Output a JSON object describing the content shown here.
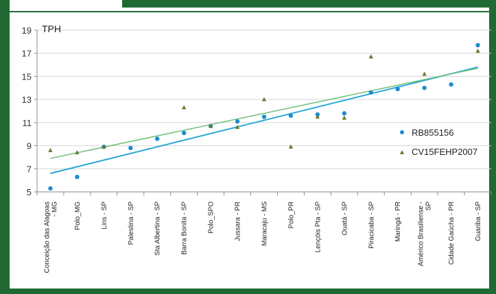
{
  "chart_data": {
    "type": "scatter",
    "ylabel": "TPH",
    "ylim": [
      5,
      19
    ],
    "yticks": [
      5,
      7,
      9,
      11,
      13,
      15,
      17,
      19
    ],
    "categories": [
      "Conceição das Alagoas - MG",
      "Polo_MG",
      "Lins - SP",
      "Palestina - SP",
      "Sta Albertina - SP",
      "Barra Bonita - SP",
      "Polo_SPO",
      "Jussara - PR",
      "Maracaju - MS",
      "Polo_PR",
      "Lençóis Pta - SP",
      "Ouatá - SP",
      "Piracicaba - SP",
      "Maringá - PR",
      "Américo Brasiliense - SP",
      "Cidade Gaúcha - PR",
      "Guariba - SP"
    ],
    "series": [
      {
        "name": "RB855156",
        "marker": "circle",
        "color": "#1f8ccf",
        "values": [
          5.3,
          6.3,
          8.9,
          8.8,
          9.6,
          10.1,
          10.7,
          11.1,
          11.5,
          11.6,
          11.7,
          11.8,
          13.6,
          13.9,
          14.0,
          14.3,
          17.7
        ],
        "trend": [
          6.6,
          15.8
        ],
        "trend_color": "#2aa8d8"
      },
      {
        "name": "CV15FEHP2007",
        "marker": "triangle",
        "color": "#6b7a2a",
        "values": [
          8.6,
          8.4,
          8.9,
          null,
          null,
          12.3,
          10.7,
          10.6,
          13.0,
          8.9,
          11.5,
          11.4,
          16.7,
          null,
          15.2,
          null,
          17.2
        ],
        "trend": [
          7.9,
          15.7
        ],
        "trend_color": "#6fc07a"
      }
    ],
    "legend_position": "right"
  }
}
